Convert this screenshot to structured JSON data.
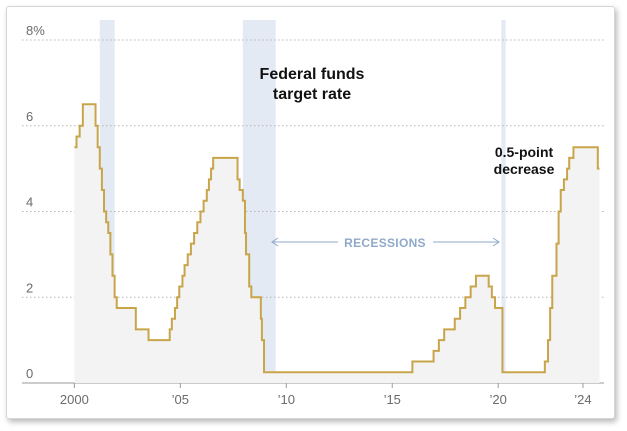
{
  "chart_data": {
    "type": "line",
    "line_style": "step",
    "title": "Federal funds target rate",
    "xlabel": "",
    "ylabel": "",
    "xlim": [
      1999.7,
      2024.85
    ],
    "ylim": [
      0,
      8
    ],
    "y_ticks": [
      0,
      2,
      4,
      6,
      8
    ],
    "y_tick_labels": [
      "0",
      "2",
      "4",
      "6",
      "8%"
    ],
    "x_ticks": [
      2000,
      2005,
      2010,
      2015,
      2020,
      2024
    ],
    "x_tick_labels": [
      "2000",
      "’05",
      "’10",
      "’15",
      "’20",
      "’24"
    ],
    "grid": "horizontal-dotted",
    "colors": {
      "line": "#c9a54a",
      "area": "#f3f3f3",
      "recession": "#e3eaf4",
      "recession_label": "#8fa9c9",
      "grid": "#b5b5b5"
    },
    "recessions": [
      {
        "start": 2001.2,
        "end": 2001.9
      },
      {
        "start": 2007.95,
        "end": 2009.5
      },
      {
        "start": 2020.15,
        "end": 2020.35
      }
    ],
    "recession_label": "RECESSIONS",
    "annotations": {
      "title_line1": "Federal funds",
      "title_line2": "target rate",
      "decrease_line1": "0.5-point",
      "decrease_line2": "decrease"
    },
    "series": [
      {
        "points": [
          [
            2000.0,
            5.5
          ],
          [
            2000.1,
            5.75
          ],
          [
            2000.25,
            6.0
          ],
          [
            2000.4,
            6.5
          ],
          [
            2001.0,
            6.0
          ],
          [
            2001.1,
            5.5
          ],
          [
            2001.2,
            5.0
          ],
          [
            2001.3,
            4.5
          ],
          [
            2001.4,
            4.0
          ],
          [
            2001.5,
            3.75
          ],
          [
            2001.6,
            3.5
          ],
          [
            2001.7,
            3.0
          ],
          [
            2001.8,
            2.5
          ],
          [
            2001.9,
            2.0
          ],
          [
            2002.0,
            1.75
          ],
          [
            2002.9,
            1.25
          ],
          [
            2003.5,
            1.0
          ],
          [
            2004.5,
            1.25
          ],
          [
            2004.6,
            1.5
          ],
          [
            2004.75,
            1.75
          ],
          [
            2004.85,
            2.0
          ],
          [
            2004.95,
            2.25
          ],
          [
            2005.1,
            2.5
          ],
          [
            2005.2,
            2.75
          ],
          [
            2005.35,
            3.0
          ],
          [
            2005.5,
            3.25
          ],
          [
            2005.65,
            3.5
          ],
          [
            2005.8,
            3.75
          ],
          [
            2005.95,
            4.0
          ],
          [
            2006.1,
            4.25
          ],
          [
            2006.25,
            4.5
          ],
          [
            2006.35,
            4.75
          ],
          [
            2006.45,
            5.0
          ],
          [
            2006.55,
            5.25
          ],
          [
            2007.7,
            4.75
          ],
          [
            2007.8,
            4.5
          ],
          [
            2007.95,
            4.25
          ],
          [
            2008.05,
            3.5
          ],
          [
            2008.1,
            3.0
          ],
          [
            2008.25,
            2.25
          ],
          [
            2008.35,
            2.0
          ],
          [
            2008.8,
            1.5
          ],
          [
            2008.85,
            1.0
          ],
          [
            2008.95,
            0.25
          ],
          [
            2015.95,
            0.5
          ],
          [
            2016.95,
            0.75
          ],
          [
            2017.2,
            1.0
          ],
          [
            2017.45,
            1.25
          ],
          [
            2017.95,
            1.5
          ],
          [
            2018.2,
            1.75
          ],
          [
            2018.45,
            2.0
          ],
          [
            2018.7,
            2.25
          ],
          [
            2018.95,
            2.5
          ],
          [
            2019.55,
            2.25
          ],
          [
            2019.7,
            2.0
          ],
          [
            2019.85,
            1.75
          ],
          [
            2020.2,
            0.25
          ],
          [
            2022.2,
            0.5
          ],
          [
            2022.35,
            1.0
          ],
          [
            2022.45,
            1.75
          ],
          [
            2022.55,
            2.5
          ],
          [
            2022.75,
            3.25
          ],
          [
            2022.85,
            4.0
          ],
          [
            2022.95,
            4.5
          ],
          [
            2023.1,
            4.75
          ],
          [
            2023.25,
            5.0
          ],
          [
            2023.35,
            5.25
          ],
          [
            2023.55,
            5.5
          ],
          [
            2024.7,
            5.0
          ],
          [
            2024.78,
            5.0
          ]
        ]
      }
    ]
  }
}
